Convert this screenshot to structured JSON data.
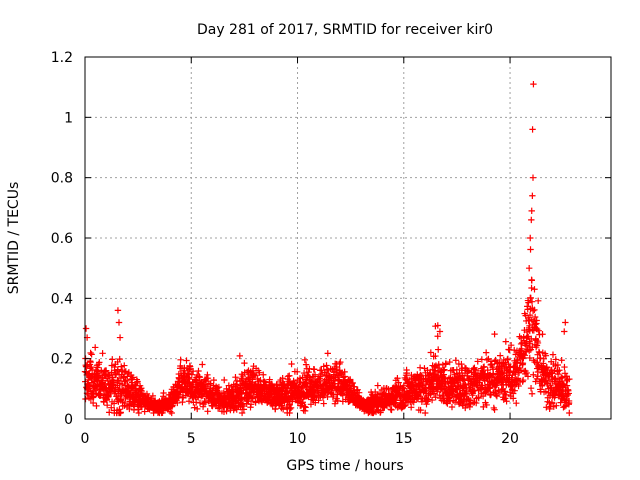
{
  "chart_data": {
    "type": "scatter",
    "title": "Day 281 of 2017, SRMTID for receiver kir0",
    "xlabel": "GPS time / hours",
    "ylabel": "SRMTID / TECUs",
    "xlim": [
      0,
      24.75
    ],
    "ylim": [
      0,
      1.2
    ],
    "xticks": [
      0,
      5,
      10,
      15,
      20
    ],
    "yticks": [
      0,
      0.2,
      0.4,
      0.6,
      0.8,
      1,
      1.2
    ],
    "xtick_labels": [
      "0",
      "5",
      "10",
      "15",
      "20"
    ],
    "ytick_labels": [
      "0",
      "0.2",
      "0.4",
      "0.6",
      "0.8",
      "1",
      "1.2"
    ],
    "grid": true,
    "marker": "+",
    "series_color": "#ff0000",
    "series": [
      {
        "name": "SRMTID",
        "profile_hours": [
          0,
          0.5,
          1,
          1.5,
          2,
          2.5,
          3,
          3.5,
          4,
          4.5,
          5,
          5.5,
          6,
          6.5,
          7,
          7.5,
          8,
          8.5,
          9,
          9.5,
          10,
          10.5,
          11,
          11.5,
          12,
          12.5,
          13,
          13.5,
          14,
          14.5,
          15,
          15.5,
          16,
          16.5,
          17,
          17.5,
          18,
          18.5,
          19,
          19.5,
          20,
          20.3,
          20.6,
          20.8,
          21,
          21.2,
          21.5,
          22,
          22.5,
          22.8
        ],
        "profile_median": [
          0.13,
          0.12,
          0.1,
          0.11,
          0.1,
          0.07,
          0.05,
          0.04,
          0.05,
          0.12,
          0.11,
          0.1,
          0.08,
          0.06,
          0.07,
          0.1,
          0.1,
          0.09,
          0.08,
          0.08,
          0.09,
          0.1,
          0.11,
          0.11,
          0.12,
          0.09,
          0.05,
          0.05,
          0.06,
          0.07,
          0.09,
          0.1,
          0.1,
          0.12,
          0.11,
          0.1,
          0.11,
          0.12,
          0.13,
          0.13,
          0.14,
          0.15,
          0.2,
          0.3,
          0.35,
          0.25,
          0.15,
          0.12,
          0.1,
          0.08
        ],
        "profile_spread": [
          0.07,
          0.06,
          0.05,
          0.1,
          0.05,
          0.04,
          0.02,
          0.02,
          0.03,
          0.06,
          0.06,
          0.05,
          0.04,
          0.03,
          0.04,
          0.06,
          0.06,
          0.04,
          0.04,
          0.05,
          0.05,
          0.05,
          0.05,
          0.06,
          0.06,
          0.04,
          0.02,
          0.03,
          0.03,
          0.04,
          0.05,
          0.05,
          0.06,
          0.08,
          0.06,
          0.06,
          0.06,
          0.07,
          0.07,
          0.07,
          0.07,
          0.08,
          0.1,
          0.15,
          0.2,
          0.1,
          0.08,
          0.08,
          0.07,
          0.05
        ],
        "peak_points": [
          [
            0.05,
            0.3
          ],
          [
            0.1,
            0.27
          ],
          [
            1.55,
            0.36
          ],
          [
            1.6,
            0.32
          ],
          [
            1.65,
            0.27
          ],
          [
            16.6,
            0.31
          ],
          [
            16.7,
            0.29
          ],
          [
            20.9,
            0.5
          ],
          [
            20.95,
            0.6
          ],
          [
            21.0,
            0.66
          ],
          [
            21.02,
            0.69
          ],
          [
            21.05,
            0.74
          ],
          [
            21.08,
            0.8
          ],
          [
            21.06,
            0.96
          ],
          [
            21.1,
            1.11
          ],
          [
            21.15,
            0.43
          ],
          [
            22.6,
            0.32
          ],
          [
            22.55,
            0.29
          ]
        ]
      }
    ]
  }
}
